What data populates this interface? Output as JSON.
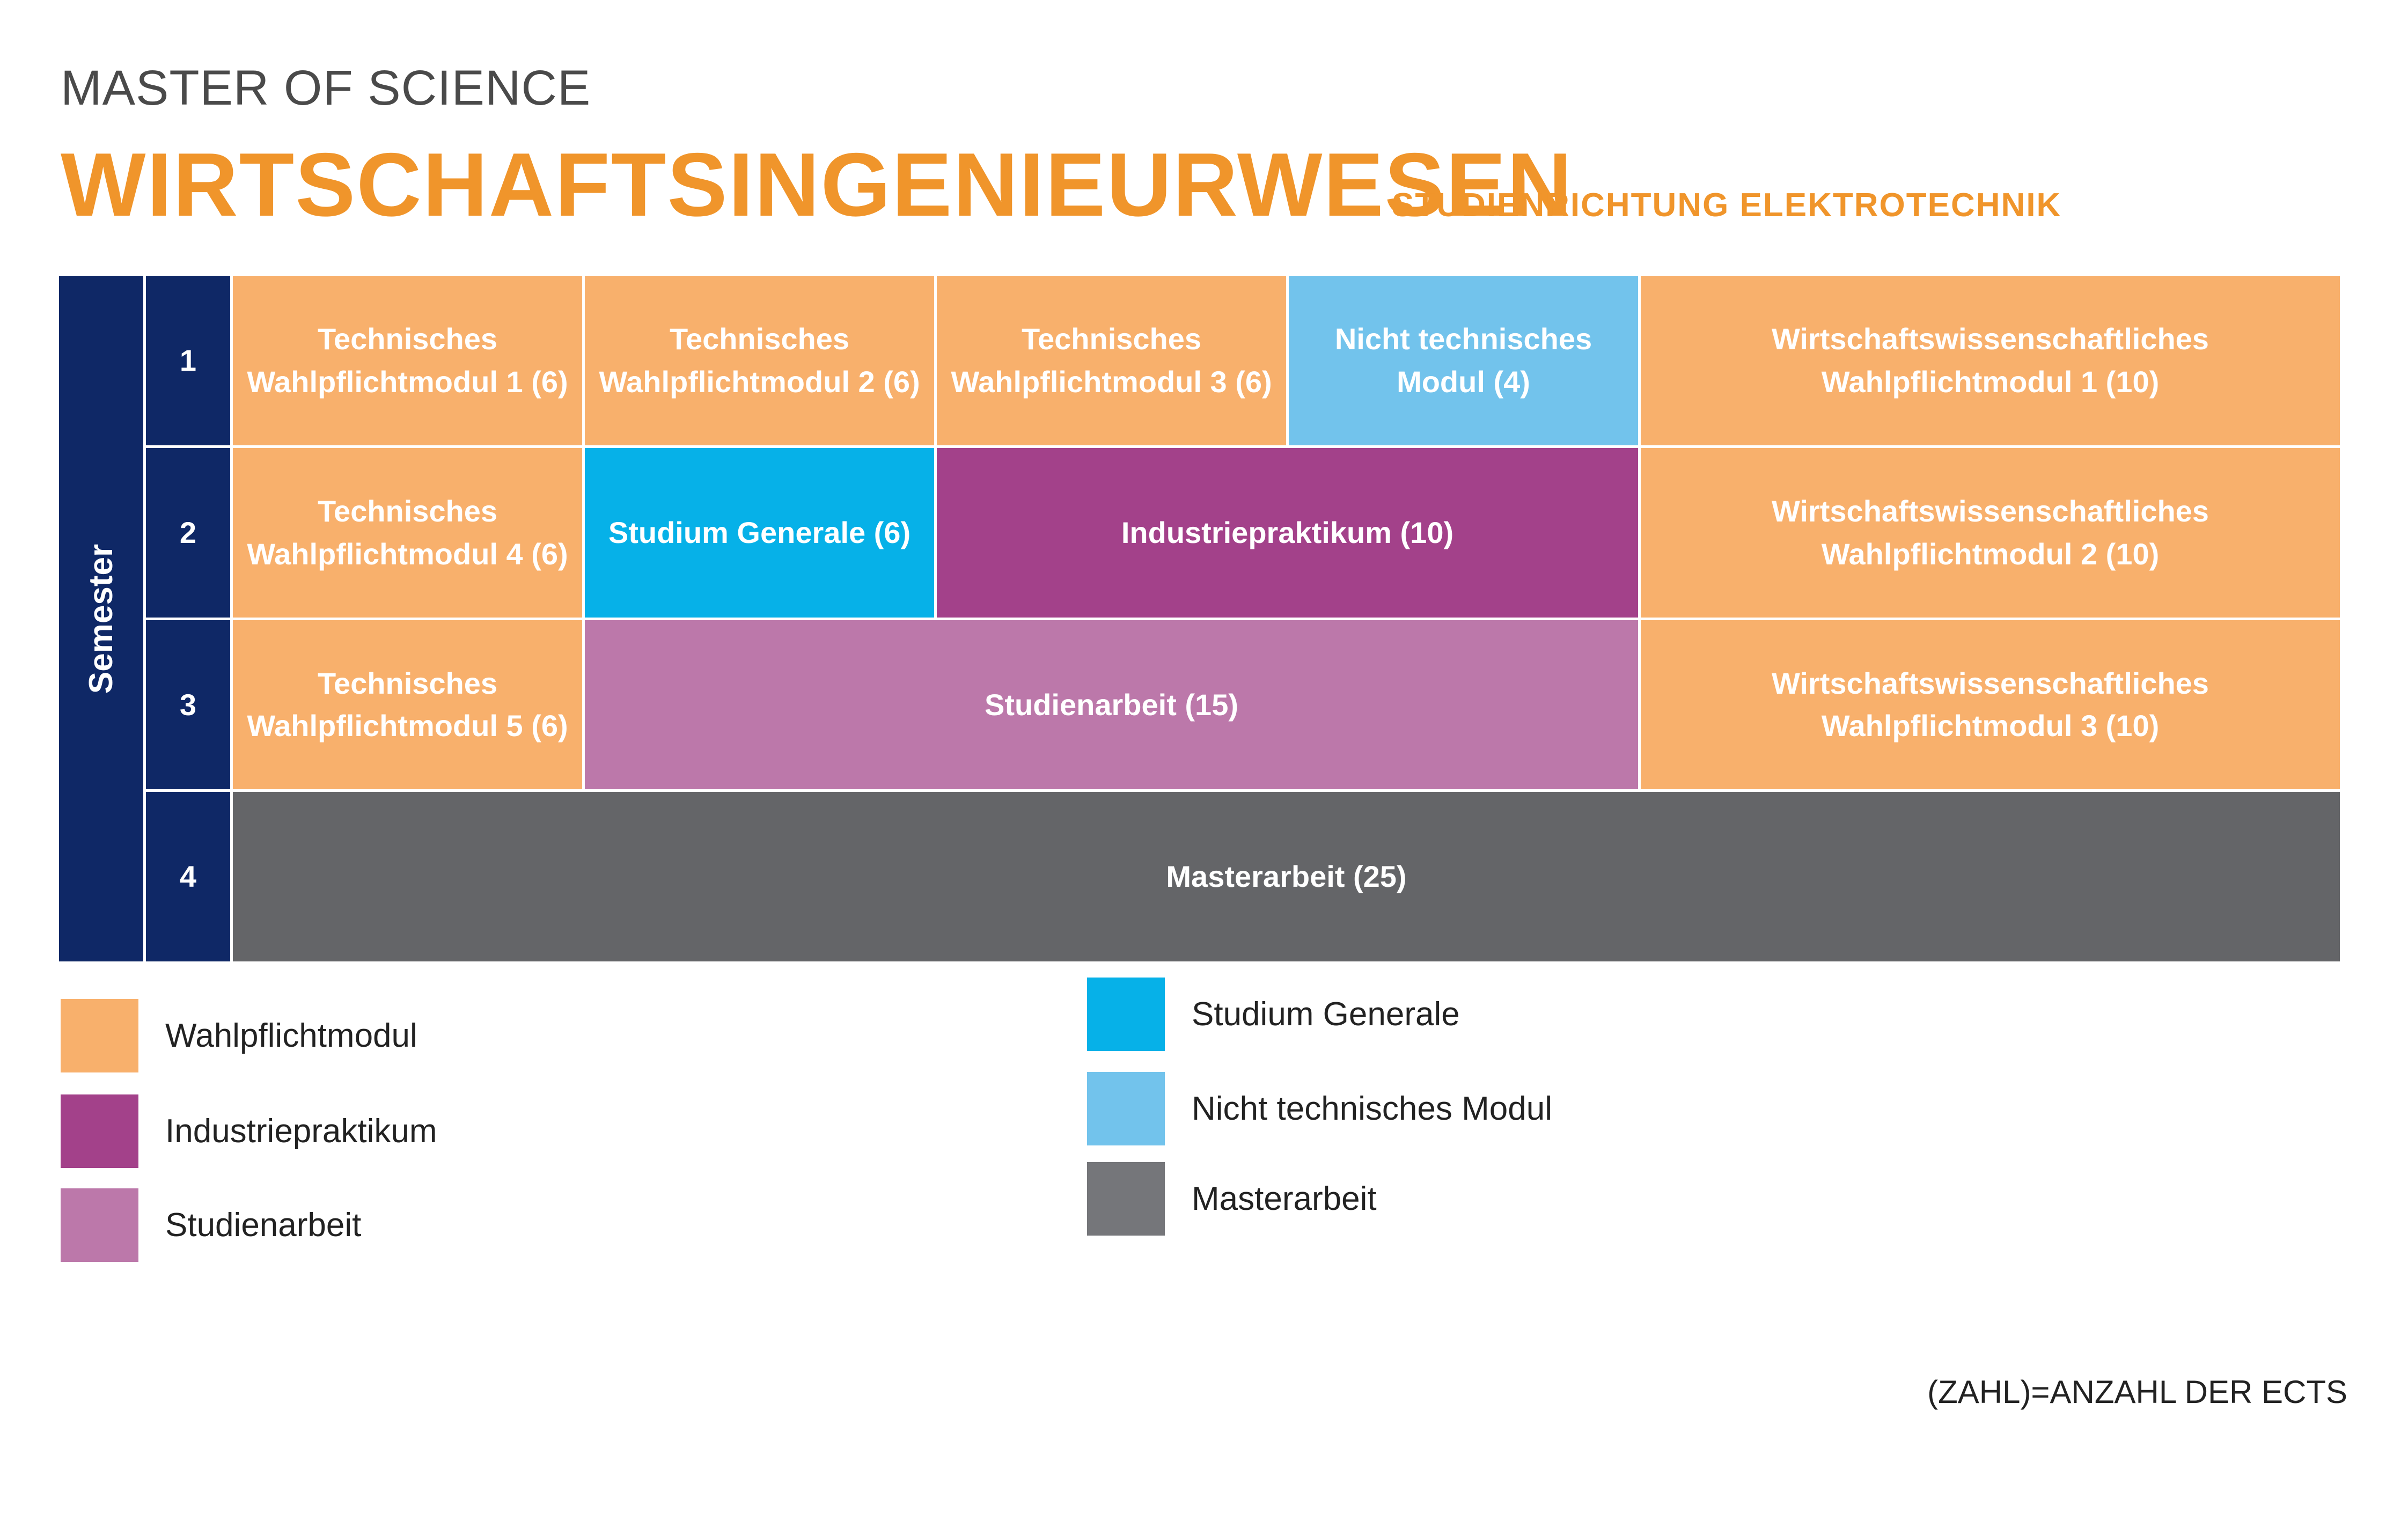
{
  "header": {
    "degree": "MASTER OF SCIENCE",
    "program": "WIRTSCHAFTSINGENIEURWESEN",
    "specialization": "STUDIENRICHTUNG ELEKTROTECHNIK"
  },
  "semester_label": "Semester",
  "semesters": [
    "1",
    "2",
    "3",
    "4"
  ],
  "modules": {
    "r1c1": "Technisches Wahlpflichtmodul 1 (6)",
    "r1c2": "Technisches Wahlpflichtmodul 2 (6)",
    "r1c3": "Technisches Wahlpflichtmodul 3 (6)",
    "r1c4": "Nicht technisches Modul (4)",
    "r1c5": "Wirtschaftswissenschaftliches Wahlpflichtmodul 1 (10)",
    "r2c1": "Technisches Wahlpflichtmodul 4 (6)",
    "r2c2": "Studium Generale (6)",
    "r2c3": "Industriepraktikum (10)",
    "r2c5": "Wirtschaftswissenschaftliches Wahlpflichtmodul 2 (10)",
    "r3c1": "Technisches Wahlpflichtmodul 5 (6)",
    "r3c2": "Studienarbeit (15)",
    "r3c5": "Wirtschaftswissenschaftliches Wahlpflichtmodul 3 (10)",
    "r4": "Masterarbeit (25)"
  },
  "legend": [
    {
      "label": "Wahlpflichtmodul",
      "color": "#f8b06c"
    },
    {
      "label": "Industriepraktikum",
      "color": "#a3418a"
    },
    {
      "label": "Studienarbeit",
      "color": "#bc78aa"
    },
    {
      "label": "Studium Generale",
      "color": "#06b1e8"
    },
    {
      "label": "Nicht technisches Modul",
      "color": "#72c3ec"
    },
    {
      "label": "Masterarbeit",
      "color": "#75767a"
    }
  ],
  "footnote": "(ZAHL)=ANZAHL DER ECTS",
  "colors": {
    "navy": "#0f2866",
    "orange_title": "#f0952b"
  }
}
